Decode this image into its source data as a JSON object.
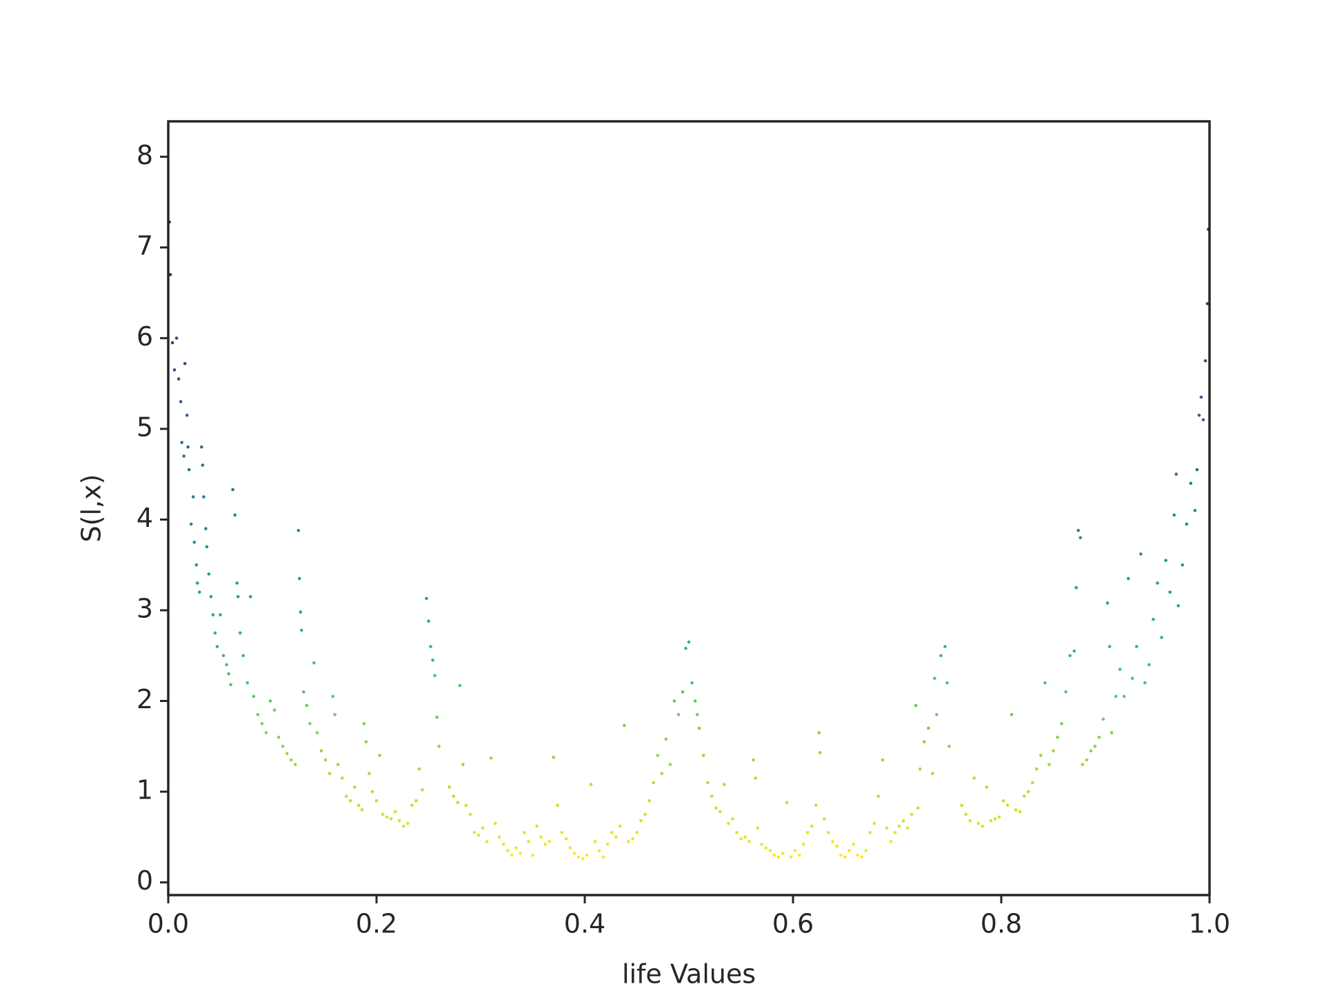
{
  "chart_data": {
    "type": "scatter",
    "xlabel": "life Values",
    "ylabel": "S(l,x)",
    "colormap": "viridis",
    "xlim": [
      0,
      1
    ],
    "ylim": [
      -0.14,
      8.39
    ],
    "xticks": [
      {
        "value": 0,
        "label": "0.0"
      },
      0.2,
      0.4,
      0.6,
      0.8,
      {
        "value": 1,
        "label": "1.0"
      }
    ],
    "yticks": [
      0,
      1,
      2,
      3,
      4,
      5,
      6,
      7,
      8
    ],
    "x": [
      0.001,
      0.002,
      0.004,
      0.006,
      0.008,
      0.01,
      0.012,
      0.013,
      0.015,
      0.016,
      0.018,
      0.019,
      0.02,
      0.022,
      0.024,
      0.025,
      0.027,
      0.028,
      0.03,
      0.032,
      0.033,
      0.034,
      0.036,
      0.037,
      0.039,
      0.041,
      0.043,
      0.045,
      0.047,
      0.05,
      0.053,
      0.056,
      0.058,
      0.06,
      0.062,
      0.064,
      0.066,
      0.067,
      0.069,
      0.072,
      0.076,
      0.079,
      0.082,
      0.086,
      0.09,
      0.094,
      0.098,
      0.102,
      0.106,
      0.11,
      0.114,
      0.118,
      0.122,
      0.125,
      0.126,
      0.127,
      0.128,
      0.13,
      0.133,
      0.136,
      0.14,
      0.143,
      0.147,
      0.151,
      0.155,
      0.158,
      0.16,
      0.163,
      0.167,
      0.171,
      0.175,
      0.179,
      0.183,
      0.186,
      0.188,
      0.19,
      0.193,
      0.196,
      0.2,
      0.203,
      0.206,
      0.21,
      0.214,
      0.218,
      0.222,
      0.226,
      0.23,
      0.234,
      0.238,
      0.241,
      0.244,
      0.248,
      0.25,
      0.252,
      0.254,
      0.256,
      0.258,
      0.26,
      0.27,
      0.274,
      0.278,
      0.28,
      0.283,
      0.286,
      0.29,
      0.294,
      0.298,
      0.302,
      0.306,
      0.31,
      0.314,
      0.318,
      0.322,
      0.326,
      0.33,
      0.334,
      0.338,
      0.342,
      0.346,
      0.35,
      0.354,
      0.358,
      0.362,
      0.366,
      0.37,
      0.374,
      0.378,
      0.382,
      0.386,
      0.39,
      0.394,
      0.398,
      0.402,
      0.406,
      0.41,
      0.414,
      0.418,
      0.422,
      0.426,
      0.43,
      0.434,
      0.438,
      0.442,
      0.446,
      0.45,
      0.454,
      0.458,
      0.462,
      0.466,
      0.47,
      0.474,
      0.478,
      0.482,
      0.486,
      0.49,
      0.494,
      0.497,
      0.5,
      0.503,
      0.506,
      0.508,
      0.51,
      0.514,
      0.518,
      0.522,
      0.526,
      0.53,
      0.534,
      0.538,
      0.542,
      0.546,
      0.55,
      0.554,
      0.558,
      0.562,
      0.564,
      0.566,
      0.57,
      0.574,
      0.578,
      0.582,
      0.586,
      0.59,
      0.594,
      0.598,
      0.602,
      0.606,
      0.61,
      0.614,
      0.618,
      0.622,
      0.625,
      0.626,
      0.63,
      0.634,
      0.638,
      0.642,
      0.646,
      0.65,
      0.654,
      0.658,
      0.662,
      0.666,
      0.67,
      0.674,
      0.678,
      0.682,
      0.686,
      0.69,
      0.694,
      0.698,
      0.702,
      0.706,
      0.71,
      0.714,
      0.718,
      0.72,
      0.722,
      0.726,
      0.73,
      0.734,
      0.736,
      0.738,
      0.742,
      0.746,
      0.748,
      0.75,
      0.762,
      0.766,
      0.77,
      0.774,
      0.778,
      0.782,
      0.786,
      0.79,
      0.794,
      0.798,
      0.802,
      0.806,
      0.81,
      0.814,
      0.818,
      0.822,
      0.826,
      0.83,
      0.834,
      0.838,
      0.842,
      0.846,
      0.85,
      0.854,
      0.858,
      0.862,
      0.866,
      0.87,
      0.872,
      0.874,
      0.876,
      0.878,
      0.882,
      0.886,
      0.89,
      0.894,
      0.898,
      0.902,
      0.904,
      0.906,
      0.91,
      0.914,
      0.918,
      0.922,
      0.926,
      0.93,
      0.934,
      0.938,
      0.942,
      0.946,
      0.95,
      0.954,
      0.958,
      0.962,
      0.966,
      0.968,
      0.97,
      0.974,
      0.978,
      0.982,
      0.986,
      0.988,
      0.99,
      0.992,
      0.994,
      0.996,
      0.998,
      0.999
    ],
    "values": [
      7.28,
      6.7,
      5.95,
      5.65,
      6.0,
      5.55,
      5.3,
      4.85,
      4.7,
      5.72,
      5.15,
      4.8,
      4.55,
      3.95,
      4.25,
      3.75,
      3.5,
      3.3,
      3.2,
      4.8,
      4.6,
      4.25,
      3.9,
      3.7,
      3.4,
      3.15,
      2.95,
      2.75,
      2.6,
      2.95,
      2.5,
      2.4,
      2.3,
      2.18,
      4.33,
      4.05,
      3.3,
      3.15,
      2.75,
      2.5,
      2.2,
      3.15,
      2.05,
      1.85,
      1.75,
      1.65,
      2.0,
      1.9,
      1.6,
      1.5,
      1.42,
      1.35,
      1.3,
      3.88,
      3.35,
      2.98,
      2.78,
      2.1,
      1.95,
      1.75,
      2.42,
      1.65,
      1.45,
      1.35,
      1.2,
      2.05,
      1.85,
      1.3,
      1.15,
      0.95,
      0.9,
      1.05,
      0.85,
      0.8,
      1.75,
      1.55,
      1.2,
      1.0,
      0.9,
      1.4,
      0.75,
      0.72,
      0.7,
      0.78,
      0.68,
      0.62,
      0.65,
      0.85,
      0.9,
      1.25,
      1.02,
      3.13,
      2.88,
      2.6,
      2.45,
      2.28,
      1.82,
      1.5,
      1.05,
      0.95,
      0.88,
      2.17,
      1.3,
      0.85,
      0.75,
      0.55,
      0.52,
      0.6,
      0.45,
      1.37,
      0.65,
      0.5,
      0.42,
      0.35,
      0.3,
      0.38,
      0.32,
      0.55,
      0.45,
      0.3,
      0.62,
      0.5,
      0.42,
      0.45,
      1.38,
      0.85,
      0.55,
      0.48,
      0.38,
      0.32,
      0.28,
      0.26,
      0.3,
      1.08,
      0.45,
      0.35,
      0.28,
      0.42,
      0.55,
      0.5,
      0.62,
      1.73,
      0.45,
      0.48,
      0.55,
      0.68,
      0.75,
      0.9,
      1.1,
      1.4,
      1.2,
      1.58,
      1.3,
      2.0,
      1.85,
      2.1,
      2.58,
      2.65,
      2.2,
      2.0,
      1.85,
      1.7,
      1.4,
      1.1,
      0.95,
      0.82,
      0.78,
      1.08,
      0.65,
      0.7,
      0.55,
      0.48,
      0.5,
      0.45,
      1.35,
      1.15,
      0.6,
      0.42,
      0.38,
      0.35,
      0.3,
      0.28,
      0.32,
      0.88,
      0.28,
      0.35,
      0.3,
      0.42,
      0.55,
      0.62,
      0.85,
      1.65,
      1.43,
      0.7,
      0.55,
      0.45,
      0.4,
      0.3,
      0.28,
      0.35,
      0.42,
      0.3,
      0.28,
      0.35,
      0.55,
      0.65,
      0.95,
      1.35,
      0.6,
      0.45,
      0.55,
      0.62,
      0.68,
      0.6,
      0.75,
      1.95,
      0.82,
      1.25,
      1.55,
      1.7,
      1.2,
      2.25,
      1.85,
      2.5,
      2.6,
      2.2,
      1.5,
      0.85,
      0.75,
      0.68,
      1.15,
      0.65,
      0.62,
      1.05,
      0.68,
      0.7,
      0.72,
      0.9,
      0.85,
      1.85,
      0.8,
      0.78,
      0.95,
      1.0,
      1.1,
      1.25,
      1.4,
      2.2,
      1.3,
      1.45,
      1.6,
      1.75,
      2.1,
      2.5,
      2.55,
      3.25,
      3.88,
      3.8,
      1.3,
      1.35,
      1.45,
      1.5,
      1.6,
      1.8,
      3.08,
      2.6,
      1.65,
      2.05,
      2.35,
      2.05,
      3.35,
      2.25,
      2.6,
      3.62,
      2.2,
      2.4,
      2.9,
      3.3,
      2.7,
      3.55,
      3.2,
      4.05,
      4.5,
      3.05,
      3.5,
      3.95,
      4.4,
      4.1,
      4.55,
      5.15,
      5.35,
      5.1,
      5.75,
      6.38,
      7.2
    ]
  }
}
